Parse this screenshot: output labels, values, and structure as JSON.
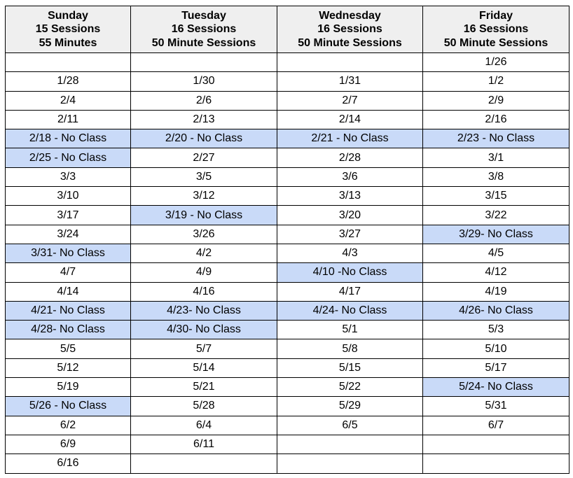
{
  "columns": [
    {
      "day": "Sunday",
      "sessions": "15 Sessions",
      "duration": "55 Minutes"
    },
    {
      "day": "Tuesday",
      "sessions": "16 Sessions",
      "duration": "50 Minute Sessions"
    },
    {
      "day": "Wednesday",
      "sessions": "16 Sessions",
      "duration": "50 Minute Sessions"
    },
    {
      "day": "Friday",
      "sessions": "16 Sessions",
      "duration": "50 Minute Sessions"
    }
  ],
  "highlight_color": "#c9daf8",
  "header_color": "#efefef",
  "rows": [
    [
      "",
      "",
      "",
      "1/26"
    ],
    [
      "1/28",
      "1/30",
      "1/31",
      "1/2"
    ],
    [
      "2/4",
      "2/6",
      "2/7",
      "2/9"
    ],
    [
      "2/11",
      "2/13",
      "2/14",
      "2/16"
    ],
    [
      "2/18 - No Class",
      "2/20 - No Class",
      "2/21 - No Class",
      "2/23 - No Class"
    ],
    [
      "2/25 - No Class",
      "2/27",
      "2/28",
      "3/1"
    ],
    [
      "3/3",
      "3/5",
      "3/6",
      "3/8"
    ],
    [
      "3/10",
      "3/12",
      "3/13",
      "3/15"
    ],
    [
      "3/17",
      "3/19 - No Class",
      "3/20",
      "3/22"
    ],
    [
      "3/24",
      "3/26",
      "3/27",
      "3/29- No Class"
    ],
    [
      "3/31- No Class",
      "4/2",
      "4/3",
      "4/5"
    ],
    [
      "4/7",
      "4/9",
      "4/10 -No Class",
      "4/12"
    ],
    [
      "4/14",
      "4/16",
      "4/17",
      "4/19"
    ],
    [
      "4/21- No Class",
      "4/23- No Class",
      "4/24- No Class",
      "4/26- No Class"
    ],
    [
      "4/28- No Class",
      "4/30- No Class",
      "5/1",
      "5/3"
    ],
    [
      "5/5",
      "5/7",
      "5/8",
      "5/10"
    ],
    [
      "5/12",
      "5/14",
      "5/15",
      "5/17"
    ],
    [
      "5/19",
      "5/21",
      "5/22",
      "5/24- No Class"
    ],
    [
      "5/26 - No Class",
      "5/28",
      "5/29",
      "5/31"
    ],
    [
      "6/2",
      "6/4",
      "6/5",
      "6/7"
    ],
    [
      "6/9",
      "6/11",
      "",
      ""
    ],
    [
      "6/16",
      "",
      "",
      ""
    ]
  ]
}
